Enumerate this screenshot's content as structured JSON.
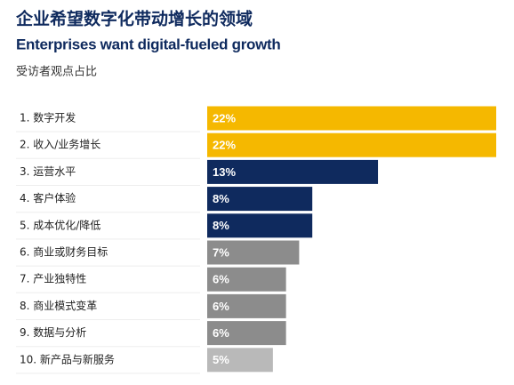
{
  "chart_data": {
    "type": "bar",
    "orientation": "horizontal",
    "title": "企业希望数字化带动增长的领域",
    "subtitle": "Enterprises want digital-fueled growth",
    "note": "受访者观点占比",
    "categories": [
      "1.  数字开发",
      "2. 收入/业务增长",
      "3. 运营水平",
      "4. 客户体验",
      "5. 成本优化/降低",
      "6. 商业或财务目标",
      "7. 产业独特性",
      "8. 商业模式变革",
      "9. 数据与分析",
      "10. 新产品与新服务"
    ],
    "values": [
      22,
      22,
      13,
      8,
      8,
      7,
      6,
      6,
      6,
      5
    ],
    "value_labels": [
      "22%",
      "22%",
      "13%",
      "8%",
      "8%",
      "7%",
      "6%",
      "6%",
      "6%",
      "5%"
    ],
    "colors": [
      "#f5b800",
      "#f5b800",
      "#0f2a5e",
      "#0f2a5e",
      "#0f2a5e",
      "#8c8c8c",
      "#8c8c8c",
      "#8c8c8c",
      "#8c8c8c",
      "#b9b9b9"
    ]
  }
}
